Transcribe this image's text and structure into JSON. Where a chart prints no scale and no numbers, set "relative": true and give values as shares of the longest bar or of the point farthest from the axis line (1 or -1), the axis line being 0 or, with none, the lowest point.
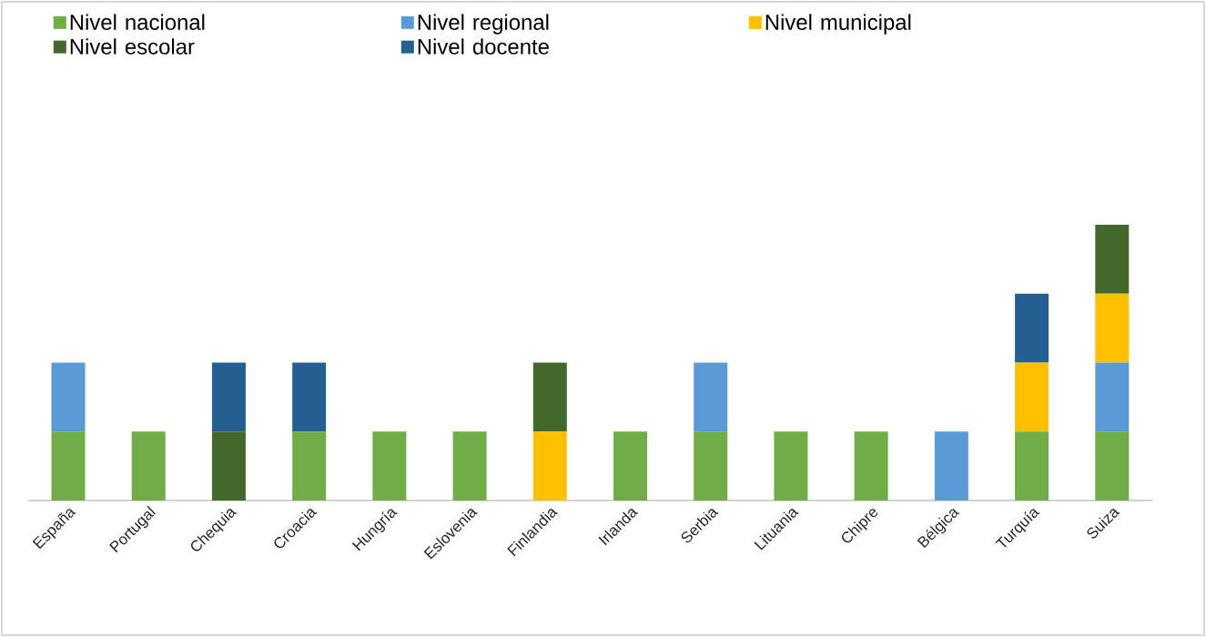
{
  "chart_data": {
    "type": "bar",
    "stacked": true,
    "relative": true,
    "legend": "top",
    "categories": [
      "España",
      "Portugal",
      "Chequia",
      "Croacia",
      "Hungría",
      "Eslovenia",
      "Finlandia",
      "Irlanda",
      "Serbia",
      "Lituania",
      "Chipre",
      "Bélgica",
      "Turquía",
      "Suiza"
    ],
    "series": [
      {
        "name": "Nivel nacional",
        "color": "#70ad47",
        "values": [
          0.25,
          0.25,
          0,
          0.25,
          0.25,
          0.25,
          0,
          0.25,
          0.25,
          0.25,
          0.25,
          0,
          0.25,
          0.25
        ]
      },
      {
        "name": "Nivel regional",
        "color": "#5b9bd5",
        "values": [
          0.25,
          0,
          0,
          0,
          0,
          0,
          0,
          0,
          0.25,
          0,
          0,
          0.25,
          0,
          0.25
        ]
      },
      {
        "name": "Nivel municipal",
        "color": "#ffc000",
        "values": [
          0,
          0,
          0,
          0,
          0,
          0,
          0.25,
          0,
          0,
          0,
          0,
          0,
          0.25,
          0.25
        ]
      },
      {
        "name": "Nivel escolar",
        "color": "#43682b",
        "values": [
          0,
          0,
          0.25,
          0,
          0,
          0,
          0.25,
          0,
          0,
          0,
          0,
          0,
          0,
          0.25
        ]
      },
      {
        "name": "Nivel docente",
        "color": "#255e91",
        "values": [
          0,
          0,
          0.25,
          0.25,
          0,
          0,
          0,
          0,
          0,
          0,
          0,
          0,
          0.25,
          0
        ]
      }
    ]
  }
}
